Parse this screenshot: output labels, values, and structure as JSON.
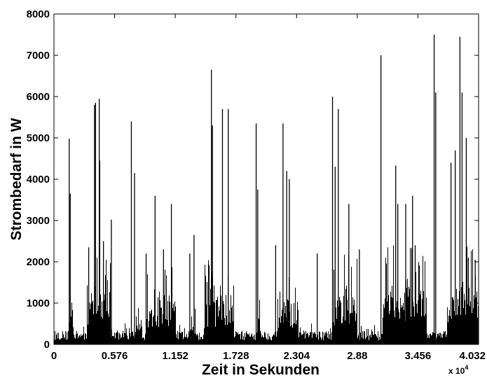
{
  "chart_data": {
    "type": "bar",
    "xlabel": "Zeit in Sekunden",
    "ylabel": "Strombedarf in W",
    "xlim": [
      0,
      40320
    ],
    "ylim": [
      0,
      8000
    ],
    "x_ticks": [
      0,
      5760,
      11520,
      17280,
      23040,
      28800,
      34560,
      40320
    ],
    "x_tick_labels": [
      "0",
      "0.576",
      "1.152",
      "1.728",
      "2.304",
      "2.88",
      "3.456",
      "4.032"
    ],
    "x_exponent_label": "x 10",
    "x_exponent_power": "4",
    "y_ticks": [
      0,
      1000,
      2000,
      3000,
      4000,
      5000,
      6000,
      7000,
      8000
    ],
    "y_tick_labels": [
      "0",
      "1000",
      "2000",
      "3000",
      "4000",
      "5000",
      "6000",
      "7000",
      "8000"
    ],
    "grid": false,
    "series_color": "#000000",
    "baseline": {
      "min": 100,
      "max": 330
    },
    "clusters": [
      {
        "x_start": 1300,
        "x_end": 1800,
        "level": 700
      },
      {
        "x_start": 3100,
        "x_end": 5400,
        "level": 1300
      },
      {
        "x_start": 7800,
        "x_end": 8400,
        "level": 600
      },
      {
        "x_start": 8700,
        "x_end": 11600,
        "level": 1100
      },
      {
        "x_start": 13000,
        "x_end": 13500,
        "level": 500
      },
      {
        "x_start": 14300,
        "x_end": 17100,
        "level": 1200
      },
      {
        "x_start": 19300,
        "x_end": 19700,
        "level": 700
      },
      {
        "x_start": 21200,
        "x_end": 23200,
        "level": 1100
      },
      {
        "x_start": 26400,
        "x_end": 28800,
        "level": 1300
      },
      {
        "x_start": 31200,
        "x_end": 35400,
        "level": 1400
      },
      {
        "x_start": 37300,
        "x_end": 40300,
        "level": 1400
      }
    ],
    "peaks": [
      {
        "x": 1450,
        "y": 4980
      },
      {
        "x": 1550,
        "y": 3650
      },
      {
        "x": 3300,
        "y": 2350
      },
      {
        "x": 3850,
        "y": 5800
      },
      {
        "x": 3950,
        "y": 5850
      },
      {
        "x": 4300,
        "y": 5950
      },
      {
        "x": 4350,
        "y": 4450
      },
      {
        "x": 4700,
        "y": 2500
      },
      {
        "x": 5450,
        "y": 3020
      },
      {
        "x": 7350,
        "y": 5400
      },
      {
        "x": 7650,
        "y": 4150
      },
      {
        "x": 8750,
        "y": 2200
      },
      {
        "x": 9600,
        "y": 3600
      },
      {
        "x": 10400,
        "y": 2300
      },
      {
        "x": 11150,
        "y": 3400
      },
      {
        "x": 12900,
        "y": 2200
      },
      {
        "x": 13300,
        "y": 2650
      },
      {
        "x": 14950,
        "y": 6650
      },
      {
        "x": 15050,
        "y": 5300
      },
      {
        "x": 16000,
        "y": 5700
      },
      {
        "x": 16550,
        "y": 5700
      },
      {
        "x": 19200,
        "y": 5350
      },
      {
        "x": 19350,
        "y": 3750
      },
      {
        "x": 21050,
        "y": 2400
      },
      {
        "x": 21750,
        "y": 5350
      },
      {
        "x": 22100,
        "y": 4200
      },
      {
        "x": 22350,
        "y": 4000
      },
      {
        "x": 25000,
        "y": 2200
      },
      {
        "x": 26450,
        "y": 6000
      },
      {
        "x": 26700,
        "y": 4300
      },
      {
        "x": 27000,
        "y": 5700
      },
      {
        "x": 28000,
        "y": 3400
      },
      {
        "x": 29000,
        "y": 2300
      },
      {
        "x": 31050,
        "y": 7000
      },
      {
        "x": 32450,
        "y": 4330
      },
      {
        "x": 32650,
        "y": 3400
      },
      {
        "x": 33400,
        "y": 3400
      },
      {
        "x": 34050,
        "y": 3600
      },
      {
        "x": 34300,
        "y": 2400
      },
      {
        "x": 36100,
        "y": 7500
      },
      {
        "x": 36250,
        "y": 6100
      },
      {
        "x": 37700,
        "y": 4400
      },
      {
        "x": 38100,
        "y": 4700
      },
      {
        "x": 38550,
        "y": 7450
      },
      {
        "x": 38750,
        "y": 6100
      },
      {
        "x": 39150,
        "y": 5000
      },
      {
        "x": 39350,
        "y": 2100
      },
      {
        "x": 40000,
        "y": 2050
      }
    ]
  }
}
